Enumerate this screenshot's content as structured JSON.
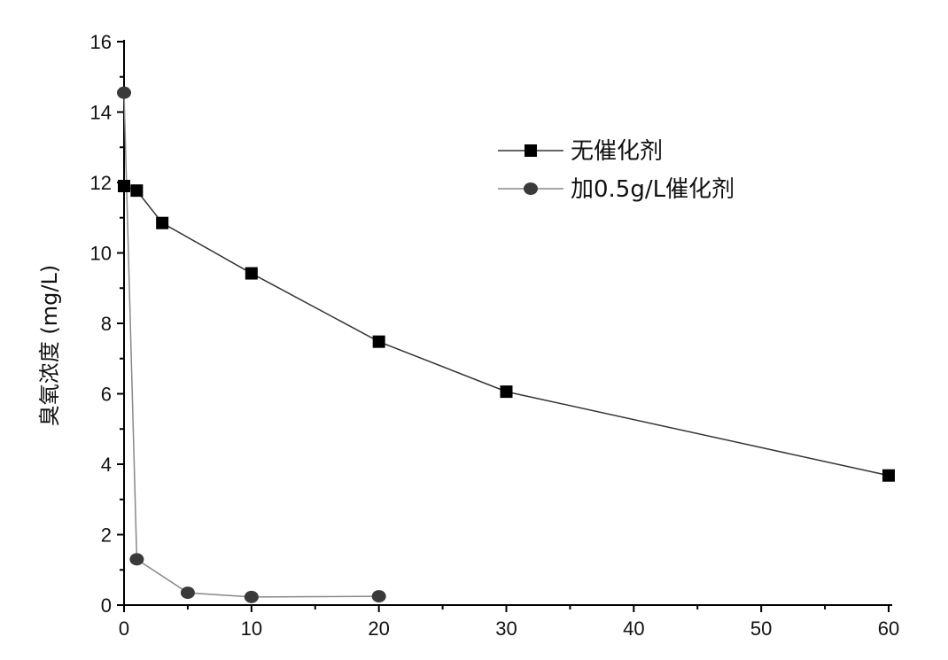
{
  "chart_data": {
    "type": "line",
    "title": "",
    "xlabel": "",
    "ylabel": "臭氧浓度 (mg/L)",
    "xlim": [
      0,
      60
    ],
    "ylim": [
      0,
      16
    ],
    "xticks": [
      0,
      10,
      20,
      30,
      40,
      50,
      60
    ],
    "yticks": [
      0,
      2,
      4,
      6,
      8,
      10,
      12,
      14,
      16
    ],
    "grid": false,
    "legend_position": "top-right",
    "series": [
      {
        "name": "无催化剂",
        "marker": "square",
        "color": "#000000",
        "line_color": "#333333",
        "x": [
          0,
          1,
          3,
          10,
          20,
          30,
          60
        ],
        "y": [
          11.9,
          11.77,
          10.85,
          9.42,
          7.48,
          6.06,
          3.68
        ]
      },
      {
        "name": "加0.5g/L催化剂",
        "marker": "circle",
        "color": "#3a3a3a",
        "line_color": "#888888",
        "x": [
          0,
          1,
          5,
          10,
          20
        ],
        "y": [
          14.55,
          1.3,
          0.35,
          0.23,
          0.25
        ]
      }
    ]
  }
}
